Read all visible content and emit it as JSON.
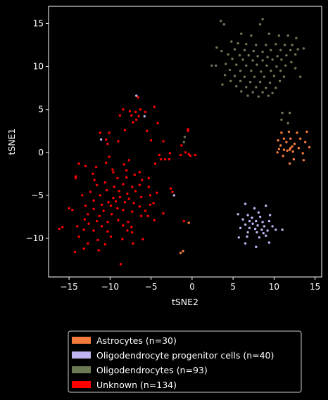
{
  "chart_data": {
    "type": "scatter",
    "title": "",
    "xlabel": "tSNE2",
    "ylabel": "tSNE1",
    "xlim": [
      -17.5,
      15.8
    ],
    "ylim": [
      -14.5,
      17.0
    ],
    "xticks": [
      -15,
      -10,
      -5,
      0,
      5,
      10,
      15
    ],
    "yticks": [
      -10,
      -5,
      0,
      5,
      10,
      15
    ],
    "xtick_labels": [
      "−15",
      "−10",
      "−5",
      "0",
      "5",
      "10",
      "15"
    ],
    "ytick_labels": [
      "−10",
      "−5",
      "0",
      "5",
      "10",
      "15"
    ],
    "grid": false,
    "legend_position": "below",
    "series": [
      {
        "name": "Astrocytes (n=30)",
        "color": "#f47a3c",
        "points": [
          [
            10.9,
            2.3
          ],
          [
            11.8,
            2.4
          ],
          [
            12.8,
            2.3
          ],
          [
            14.0,
            2.4
          ],
          [
            11.2,
            1.6
          ],
          [
            12.0,
            1.6
          ],
          [
            13.2,
            1.6
          ],
          [
            10.5,
            1.4
          ],
          [
            11.5,
            1.2
          ],
          [
            12.5,
            1.0
          ],
          [
            13.8,
            1.2
          ],
          [
            10.8,
            0.8
          ],
          [
            12.2,
            0.7
          ],
          [
            13.0,
            0.5
          ],
          [
            14.3,
            0.6
          ],
          [
            10.6,
            0.4
          ],
          [
            11.2,
            0.3
          ],
          [
            11.9,
            0.3
          ],
          [
            12.0,
            0.5
          ],
          [
            11.6,
            0.2
          ],
          [
            12.3,
            0.1
          ],
          [
            13.5,
            -0.1
          ],
          [
            10.4,
            0.0
          ],
          [
            11.1,
            -0.4
          ],
          [
            12.4,
            -0.8
          ],
          [
            13.6,
            -0.9
          ],
          [
            11.9,
            -1.3
          ],
          [
            -0.4,
            -8.2
          ],
          [
            -1.1,
            -11.5
          ],
          [
            -1.4,
            -11.7
          ]
        ]
      },
      {
        "name": "Oligodendrocyte progenitor cells (n=40)",
        "color": "#c0b4f0",
        "points": [
          [
            6.5,
            -6.0
          ],
          [
            7.6,
            -6.5
          ],
          [
            9.0,
            -6.2
          ],
          [
            5.6,
            -7.2
          ],
          [
            6.8,
            -7.3
          ],
          [
            8.1,
            -7.0
          ],
          [
            9.5,
            -7.3
          ],
          [
            7.3,
            -7.6
          ],
          [
            8.3,
            -7.5
          ],
          [
            6.2,
            -7.8
          ],
          [
            7.0,
            -8.0
          ],
          [
            7.8,
            -8.0
          ],
          [
            8.6,
            -8.1
          ],
          [
            9.4,
            -8.0
          ],
          [
            6.5,
            -8.4
          ],
          [
            7.4,
            -8.3
          ],
          [
            8.0,
            -8.5
          ],
          [
            8.8,
            -8.6
          ],
          [
            9.8,
            -8.6
          ],
          [
            5.9,
            -8.8
          ],
          [
            7.0,
            -8.8
          ],
          [
            7.7,
            -8.9
          ],
          [
            8.5,
            -9.0
          ],
          [
            9.2,
            -9.1
          ],
          [
            10.2,
            -9.0
          ],
          [
            6.8,
            -9.3
          ],
          [
            7.9,
            -9.3
          ],
          [
            8.7,
            -9.4
          ],
          [
            5.7,
            -9.9
          ],
          [
            6.7,
            -9.8
          ],
          [
            8.2,
            -9.9
          ],
          [
            9.0,
            -9.7
          ],
          [
            11.0,
            -9.0
          ],
          [
            6.5,
            -10.6
          ],
          [
            7.8,
            -11.0
          ],
          [
            9.4,
            -10.5
          ],
          [
            -6.8,
            6.6
          ],
          [
            -5.8,
            4.2
          ],
          [
            -11.1,
            1.5
          ],
          [
            -2.2,
            -5.0
          ]
        ]
      },
      {
        "name": "Oligodendrocytes (n=93)",
        "color": "#6b7a55",
        "points": [
          [
            3.5,
            15.3
          ],
          [
            3.9,
            14.9
          ],
          [
            8.6,
            15.5
          ],
          [
            8.3,
            14.9
          ],
          [
            6.0,
            13.8
          ],
          [
            7.2,
            13.6
          ],
          [
            9.4,
            13.8
          ],
          [
            10.6,
            13.6
          ],
          [
            11.7,
            13.6
          ],
          [
            12.7,
            13.3
          ],
          [
            4.8,
            12.9
          ],
          [
            5.6,
            12.7
          ],
          [
            6.6,
            12.6
          ],
          [
            7.8,
            12.5
          ],
          [
            9.0,
            12.5
          ],
          [
            10.2,
            12.6
          ],
          [
            11.3,
            12.5
          ],
          [
            12.2,
            12.5
          ],
          [
            3.0,
            12.2
          ],
          [
            3.6,
            11.8
          ],
          [
            5.2,
            12.0
          ],
          [
            6.4,
            11.9
          ],
          [
            7.5,
            11.8
          ],
          [
            8.6,
            11.7
          ],
          [
            9.6,
            11.9
          ],
          [
            10.8,
            11.9
          ],
          [
            12.0,
            11.9
          ],
          [
            12.9,
            12.0
          ],
          [
            13.6,
            12.1
          ],
          [
            4.4,
            11.4
          ],
          [
            5.8,
            11.3
          ],
          [
            6.9,
            11.3
          ],
          [
            8.0,
            11.2
          ],
          [
            9.2,
            11.1
          ],
          [
            10.4,
            11.2
          ],
          [
            11.5,
            11.3
          ],
          [
            12.6,
            11.4
          ],
          [
            4.9,
            10.9
          ],
          [
            6.2,
            10.8
          ],
          [
            7.4,
            10.7
          ],
          [
            8.6,
            10.7
          ],
          [
            9.8,
            10.8
          ],
          [
            10.9,
            10.8
          ],
          [
            12.1,
            10.5
          ],
          [
            2.4,
            10.1
          ],
          [
            2.9,
            10.1
          ],
          [
            4.1,
            10.3
          ],
          [
            5.4,
            10.2
          ],
          [
            6.6,
            10.1
          ],
          [
            7.9,
            10.2
          ],
          [
            9.1,
            10.1
          ],
          [
            10.3,
            10.0
          ],
          [
            11.4,
            10.1
          ],
          [
            12.6,
            9.8
          ],
          [
            4.6,
            9.6
          ],
          [
            5.9,
            9.5
          ],
          [
            7.2,
            9.5
          ],
          [
            8.4,
            9.4
          ],
          [
            9.6,
            9.5
          ],
          [
            10.8,
            9.5
          ],
          [
            4.0,
            9.0
          ],
          [
            5.2,
            8.9
          ],
          [
            6.4,
            8.8
          ],
          [
            7.6,
            8.8
          ],
          [
            8.8,
            8.8
          ],
          [
            10.0,
            8.9
          ],
          [
            11.2,
            8.8
          ],
          [
            13.2,
            8.8
          ],
          [
            4.7,
            8.3
          ],
          [
            5.9,
            8.3
          ],
          [
            7.1,
            8.2
          ],
          [
            8.3,
            8.2
          ],
          [
            9.5,
            8.1
          ],
          [
            10.7,
            8.3
          ],
          [
            3.7,
            7.9
          ],
          [
            5.4,
            7.7
          ],
          [
            6.6,
            7.6
          ],
          [
            7.8,
            7.6
          ],
          [
            9.0,
            7.5
          ],
          [
            10.2,
            7.5
          ],
          [
            6.0,
            7.1
          ],
          [
            7.4,
            7.0
          ],
          [
            8.6,
            7.0
          ],
          [
            9.8,
            6.9
          ],
          [
            6.8,
            6.6
          ],
          [
            8.1,
            6.5
          ],
          [
            9.3,
            6.6
          ],
          [
            11.0,
            4.6
          ],
          [
            11.9,
            4.6
          ],
          [
            10.9,
            3.8
          ],
          [
            11.7,
            3.4
          ],
          [
            -0.9,
            1.8
          ],
          [
            -1.0,
            1.2
          ]
        ]
      },
      {
        "name": "Unknown (n=134)",
        "color": "#ff0000",
        "points": [
          [
            -6.6,
            6.4
          ],
          [
            -8.4,
            5.0
          ],
          [
            -7.6,
            4.8
          ],
          [
            -6.9,
            4.7
          ],
          [
            -6.3,
            5.0
          ],
          [
            -4.6,
            5.3
          ],
          [
            -5.7,
            4.7
          ],
          [
            -8.8,
            4.3
          ],
          [
            -7.4,
            4.3
          ],
          [
            -6.8,
            3.8
          ],
          [
            -6.5,
            4.2
          ],
          [
            -7.2,
            3.5
          ],
          [
            -4.2,
            3.4
          ],
          [
            -5.5,
            2.5
          ],
          [
            -8.2,
            2.6
          ],
          [
            -11.2,
            2.3
          ],
          [
            -10.1,
            2.3
          ],
          [
            -10.5,
            1.5
          ],
          [
            -9.0,
            1.3
          ],
          [
            -10.3,
            1.0
          ],
          [
            -0.5,
            2.7
          ],
          [
            -0.5,
            2.5
          ],
          [
            -3.5,
            1.3
          ],
          [
            -5.0,
            1.4
          ],
          [
            -1.3,
            0.8
          ],
          [
            -0.8,
            0.0
          ],
          [
            -0.4,
            -0.2
          ],
          [
            -2.7,
            -0.1
          ],
          [
            -4.0,
            -0.3
          ],
          [
            -1.4,
            -0.3
          ],
          [
            -0.2,
            -0.4
          ],
          [
            0.4,
            -0.3
          ],
          [
            -3.8,
            -0.8
          ],
          [
            -3.3,
            -0.8
          ],
          [
            -2.8,
            -0.8
          ],
          [
            -4.5,
            -1.3
          ],
          [
            -7.7,
            -0.9
          ],
          [
            -10.1,
            -0.5
          ],
          [
            -13.8,
            -1.3
          ],
          [
            -13.0,
            -1.6
          ],
          [
            -11.7,
            -1.7
          ],
          [
            -10.5,
            -1.2
          ],
          [
            -8.3,
            -1.4
          ],
          [
            -9.7,
            -2.0
          ],
          [
            -9.6,
            -2.3
          ],
          [
            -8.0,
            -2.1
          ],
          [
            -6.4,
            -2.3
          ],
          [
            -7.0,
            -2.6
          ],
          [
            -12.1,
            -2.5
          ],
          [
            -14.2,
            -2.8
          ],
          [
            -14.2,
            -3.0
          ],
          [
            -11.9,
            -3.2
          ],
          [
            -9.1,
            -3.0
          ],
          [
            -8.0,
            -2.9
          ],
          [
            -6.1,
            -3.2
          ],
          [
            -5.3,
            -3.0
          ],
          [
            -10.6,
            -3.5
          ],
          [
            -11.6,
            -3.8
          ],
          [
            -9.5,
            -4.0
          ],
          [
            -8.4,
            -3.7
          ],
          [
            -7.3,
            -4.0
          ],
          [
            -6.4,
            -3.8
          ],
          [
            -5.3,
            -4.0
          ],
          [
            -2.6,
            -4.2
          ],
          [
            -12.4,
            -4.6
          ],
          [
            -10.4,
            -4.4
          ],
          [
            -8.9,
            -4.5
          ],
          [
            -7.9,
            -4.8
          ],
          [
            -6.9,
            -4.5
          ],
          [
            -4.3,
            -4.7
          ],
          [
            -2.4,
            -4.6
          ],
          [
            -13.4,
            -5.0
          ],
          [
            -11.2,
            -5.0
          ],
          [
            -9.6,
            -5.3
          ],
          [
            -8.8,
            -5.2
          ],
          [
            -7.7,
            -5.4
          ],
          [
            -6.2,
            -5.2
          ],
          [
            -5.1,
            -5.0
          ],
          [
            -12.0,
            -5.6
          ],
          [
            -10.2,
            -5.8
          ],
          [
            -9.3,
            -5.7
          ],
          [
            -8.2,
            -5.8
          ],
          [
            -7.1,
            -5.9
          ],
          [
            -4.7,
            -5.9
          ],
          [
            -13.0,
            -6.2
          ],
          [
            -11.0,
            -6.1
          ],
          [
            -9.9,
            -6.2
          ],
          [
            -9.1,
            -6.5
          ],
          [
            -6.4,
            -6.3
          ],
          [
            -5.1,
            -6.1
          ],
          [
            -15.0,
            -6.5
          ],
          [
            -14.6,
            -6.7
          ],
          [
            -12.0,
            -6.6
          ],
          [
            -10.8,
            -6.8
          ],
          [
            -8.4,
            -6.7
          ],
          [
            -7.3,
            -6.9
          ],
          [
            -5.7,
            -6.8
          ],
          [
            -3.5,
            -7.1
          ],
          [
            -12.7,
            -7.2
          ],
          [
            -11.3,
            -7.4
          ],
          [
            -9.8,
            -7.2
          ],
          [
            -6.2,
            -7.4
          ],
          [
            -5.4,
            -7.4
          ],
          [
            -13.1,
            -7.8
          ],
          [
            -11.6,
            -8.0
          ],
          [
            -10.3,
            -8.1
          ],
          [
            -9.0,
            -7.9
          ],
          [
            -7.8,
            -8.1
          ],
          [
            -4.6,
            -7.9
          ],
          [
            -14.0,
            -8.6
          ],
          [
            -12.6,
            -8.3
          ],
          [
            -11.0,
            -8.6
          ],
          [
            -8.4,
            -8.5
          ],
          [
            -7.4,
            -8.7
          ],
          [
            -16.2,
            -8.9
          ],
          [
            -15.8,
            -8.7
          ],
          [
            -13.2,
            -9.0
          ],
          [
            -12.0,
            -9.1
          ],
          [
            -10.3,
            -9.2
          ],
          [
            -7.9,
            -9.1
          ],
          [
            -7.3,
            -9.3
          ],
          [
            -13.8,
            -9.8
          ],
          [
            -11.5,
            -10.2
          ],
          [
            -9.9,
            -9.8
          ],
          [
            -8.5,
            -10.1
          ],
          [
            -6.0,
            -10.1
          ],
          [
            -12.7,
            -10.6
          ],
          [
            -10.6,
            -10.7
          ],
          [
            -7.2,
            -10.6
          ],
          [
            -13.2,
            -11.2
          ],
          [
            -14.3,
            -11.6
          ],
          [
            -11.4,
            -11.4
          ],
          [
            -8.7,
            -13.0
          ],
          [
            -1.0,
            -8.0
          ]
        ]
      }
    ]
  }
}
